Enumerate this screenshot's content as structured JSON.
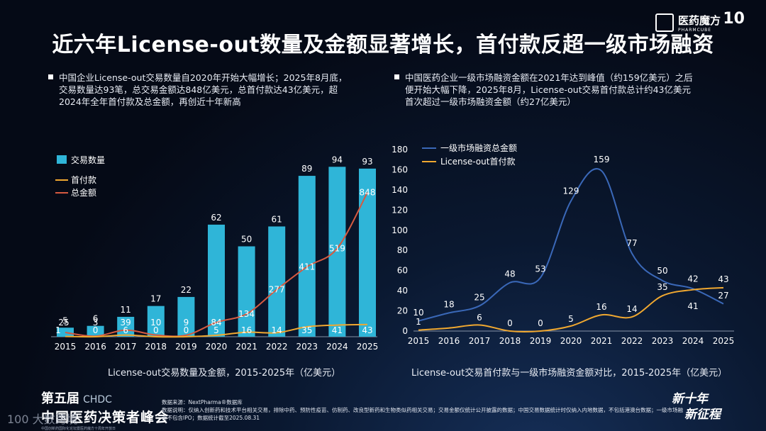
{
  "title": "近六年License-out数量及金额显著增长，首付款反超一级市场融资",
  "brand": {
    "name": "医药魔方",
    "sub": "PHARMCUBE",
    "badge": "10"
  },
  "bullets": {
    "left": [
      "中国企业License-out交易数量自2020年开始大幅增长；2025年8月底，",
      "交易数量达93笔，总交易金额达848亿美元，总首付款达43亿美元，超",
      "2024年全年首付款及总金额，再创近十年新高"
    ],
    "right": [
      "中国医药企业一级市场融资金额在2021年达到峰值（约159亿美元）之后",
      "便开始大幅下降，2025年8月，License-out交易首付款总计约43亿美元",
      "首次超过一级市场融资金额（约27亿美元）"
    ]
  },
  "colors": {
    "bar": "#2fb5d8",
    "upfront": "#f0a830",
    "total": "#d65a40",
    "financing": "#3a68b8"
  },
  "chart_data": [
    {
      "type": "bar",
      "title": "",
      "caption": "License-out交易数量及金额，2015-2025年（亿美元）",
      "categories": [
        "2015",
        "2016",
        "2017",
        "2018",
        "2019",
        "2020",
        "2021",
        "2022",
        "2023",
        "2024",
        "2025"
      ],
      "series": [
        {
          "name": "交易数量",
          "type": "bar",
          "values": [
            5,
            6,
            11,
            17,
            22,
            62,
            50,
            61,
            89,
            94,
            93
          ]
        },
        {
          "name": "首付款",
          "type": "line",
          "values": [
            1,
            0,
            6,
            0,
            0,
            5,
            16,
            14,
            35,
            41,
            43
          ]
        },
        {
          "name": "总金额",
          "type": "line",
          "values": [
            25,
            3,
            39,
            10,
            9,
            84,
            134,
            277,
            411,
            519,
            848
          ]
        }
      ],
      "legend_position": "top-left",
      "grid": false
    },
    {
      "type": "line",
      "title": "",
      "caption": "License-out交易首付款与一级市场融资金额对比，2015-2025年（亿美元）",
      "x": [
        "2015",
        "2016",
        "2017",
        "2018",
        "2019",
        "2020",
        "2021",
        "2022",
        "2023",
        "2024",
        "2025"
      ],
      "series": [
        {
          "name": "一级市场融资总金额",
          "values": [
            10,
            18,
            25,
            48,
            53,
            129,
            159,
            77,
            50,
            42,
            27
          ]
        },
        {
          "name": "License-out首付款",
          "values": [
            1,
            null,
            6,
            0,
            0,
            5,
            16,
            14,
            35,
            41,
            43
          ]
        }
      ],
      "yticks": [
        "0",
        "20",
        "40",
        "60",
        "80",
        "100",
        "120",
        "140",
        "160",
        "180"
      ],
      "ylim": [
        0,
        180
      ],
      "legend_position": "top-left",
      "grid": false
    }
  ],
  "footer": {
    "event_line1": "第五届",
    "event_logo": "CHDC",
    "event_line2": "中国医药决策者峰会",
    "event_tagline": "中国创新药国际化论坛暨医药魔方十周年开放日",
    "source": "数据来源：NextPharma®数据库",
    "notes": "数据说明：仅纳入创新药和技术平台相关交易，排除中药、预防性疫苗、仿制药、改良型新药和生物类似药相关交易；交易金额仅统计公开披露的数据；中国交易数据统计时仅纳入内地数据，不包括港澳台数据；一级市场融资不包含IPO；数据统计截至2025.08.31",
    "slogan1": "新十年",
    "slogan2": "新征程"
  },
  "watermark": "100 大数跨境"
}
